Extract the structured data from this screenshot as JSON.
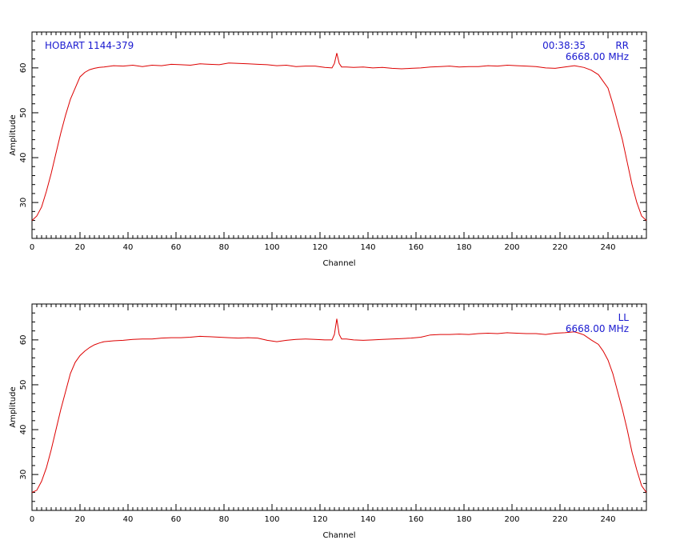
{
  "colors": {
    "trace": "#dd0000",
    "annotation": "#1a1ad0",
    "axes": "#000000"
  },
  "chart_data": [
    {
      "type": "line",
      "xlabel": "Channel",
      "ylabel": "Amplitude",
      "xlim": [
        0,
        256
      ],
      "ylim": [
        22,
        68
      ],
      "x_ticks": [
        0,
        20,
        40,
        60,
        80,
        100,
        120,
        140,
        160,
        180,
        200,
        220,
        240
      ],
      "y_ticks": [
        30,
        40,
        50,
        60
      ],
      "annotations": {
        "source": "HOBART 1144-379",
        "time": "00:38:35",
        "polarization": "RR",
        "frequency": "6668.00 MHz"
      },
      "series": [
        {
          "x": [
            0,
            2,
            4,
            6,
            8,
            10,
            12,
            14,
            16,
            18,
            20,
            22,
            24,
            26,
            28,
            30,
            34,
            38,
            42,
            46,
            50,
            54,
            58,
            62,
            66,
            70,
            74,
            78,
            82,
            86,
            90,
            94,
            98,
            102,
            106,
            110,
            114,
            118,
            122,
            125,
            126,
            127,
            128,
            129,
            131,
            134,
            138,
            142,
            146,
            150,
            154,
            158,
            162,
            166,
            170,
            174,
            178,
            182,
            186,
            190,
            194,
            198,
            202,
            206,
            210,
            214,
            218,
            222,
            226,
            230,
            233,
            236,
            238,
            240,
            242,
            244,
            246,
            248,
            250,
            252,
            254,
            256
          ],
          "values": [
            26,
            27,
            29,
            32.5,
            36.5,
            41,
            45.5,
            49.5,
            53,
            55.5,
            58,
            59,
            59.6,
            59.9,
            60.1,
            60.2,
            60.5,
            60.4,
            60.6,
            60.3,
            60.6,
            60.5,
            60.8,
            60.7,
            60.6,
            60.9,
            60.8,
            60.7,
            61.1,
            61,
            60.9,
            60.8,
            60.7,
            60.5,
            60.6,
            60.3,
            60.4,
            60.4,
            60.1,
            60,
            61,
            63.3,
            61,
            60.2,
            60.2,
            60.1,
            60.2,
            60,
            60.1,
            59.9,
            59.8,
            59.9,
            60,
            60.2,
            60.3,
            60.4,
            60.2,
            60.3,
            60.3,
            60.5,
            60.4,
            60.6,
            60.5,
            60.4,
            60.3,
            60,
            59.9,
            60.2,
            60.5,
            60.1,
            59.5,
            58.5,
            57,
            55.5,
            52,
            48,
            44,
            39,
            34,
            30,
            27,
            26
          ]
        }
      ]
    },
    {
      "type": "line",
      "xlabel": "Channel",
      "ylabel": "Amplitude",
      "xlim": [
        0,
        256
      ],
      "ylim": [
        22,
        68
      ],
      "x_ticks": [
        0,
        20,
        40,
        60,
        80,
        100,
        120,
        140,
        160,
        180,
        200,
        220,
        240
      ],
      "y_ticks": [
        30,
        40,
        50,
        60
      ],
      "annotations": {
        "polarization": "LL",
        "frequency": "6668.00 MHz"
      },
      "series": [
        {
          "x": [
            0,
            2,
            4,
            6,
            8,
            10,
            12,
            14,
            16,
            18,
            20,
            22,
            24,
            26,
            28,
            30,
            34,
            38,
            42,
            46,
            50,
            54,
            58,
            62,
            66,
            70,
            74,
            78,
            82,
            86,
            90,
            94,
            98,
            102,
            106,
            110,
            114,
            118,
            122,
            125,
            126,
            127,
            128,
            129,
            131,
            134,
            138,
            142,
            146,
            150,
            154,
            158,
            162,
            166,
            170,
            174,
            178,
            182,
            186,
            190,
            194,
            198,
            202,
            206,
            210,
            214,
            218,
            222,
            226,
            228,
            230,
            233,
            236,
            238,
            240,
            242,
            244,
            246,
            248,
            250,
            252,
            254,
            256
          ],
          "values": [
            26,
            26.5,
            28.5,
            31.5,
            35.5,
            40,
            44.5,
            48.5,
            52.5,
            55,
            56.5,
            57.5,
            58.3,
            58.9,
            59.3,
            59.6,
            59.8,
            59.9,
            60.1,
            60.2,
            60.2,
            60.4,
            60.5,
            60.5,
            60.6,
            60.8,
            60.7,
            60.6,
            60.5,
            60.4,
            60.5,
            60.4,
            59.9,
            59.6,
            59.9,
            60.1,
            60.2,
            60.1,
            60,
            60,
            61.2,
            64.7,
            61.2,
            60.2,
            60.2,
            60,
            59.9,
            60,
            60.1,
            60.2,
            60.3,
            60.4,
            60.6,
            61.1,
            61.2,
            61.2,
            61.3,
            61.2,
            61.4,
            61.5,
            61.4,
            61.6,
            61.5,
            61.4,
            61.4,
            61.2,
            61.5,
            61.6,
            61.8,
            61.5,
            61.1,
            60,
            59,
            57.5,
            55.5,
            52.5,
            48.5,
            44.5,
            40,
            35,
            31,
            27.5,
            26
          ]
        }
      ]
    }
  ]
}
